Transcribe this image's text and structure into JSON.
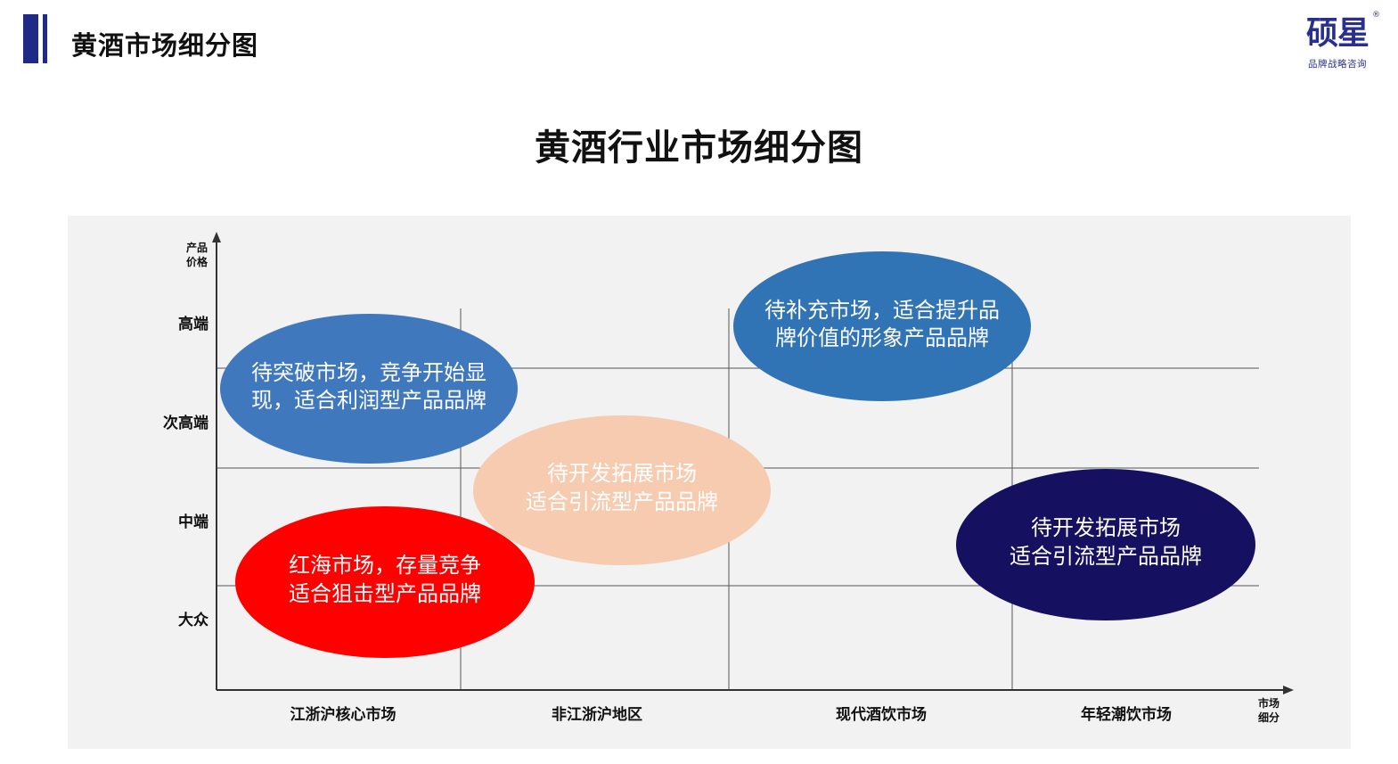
{
  "header": {
    "title": "黄酒市场细分图"
  },
  "logo": {
    "name": "硕星",
    "mark": "®",
    "tagline": "品牌战略咨询"
  },
  "title": "黄酒行业市场细分图",
  "diagram": {
    "y_axis": {
      "label_line1": "产品",
      "label_line2": "价格",
      "levels": [
        "高端",
        "次高端",
        "中端",
        "大众"
      ]
    },
    "x_axis": {
      "label_line1": "市场",
      "label_line2": "细分",
      "categories": [
        "江浙沪核心市场",
        "非江浙沪地区",
        "现代酒饮市场",
        "年轻潮饮市场"
      ]
    },
    "bubbles": [
      {
        "line1": "待突破市场，竞争开始显",
        "line2": "现，适合利润型产品品牌",
        "color": "#3f78bd"
      },
      {
        "line1": "待开发拓展市场",
        "line2": "适合引流型产品品牌",
        "color": "#f7cbaf"
      },
      {
        "line1": "红海市场，存量竞争",
        "line2": "适合狙击型产品品牌",
        "color": "#ff0000"
      },
      {
        "line1": "待补充市场，适合提升品",
        "line2": "牌价值的形象产品品牌",
        "color": "#3174b6"
      },
      {
        "line1": "待开发拓展市场",
        "line2": "适合引流型产品品牌",
        "color": "#161061"
      }
    ]
  },
  "colors": {
    "accent": "#1f2a86",
    "panel": "#f2f2f2",
    "grid": "#555555"
  }
}
